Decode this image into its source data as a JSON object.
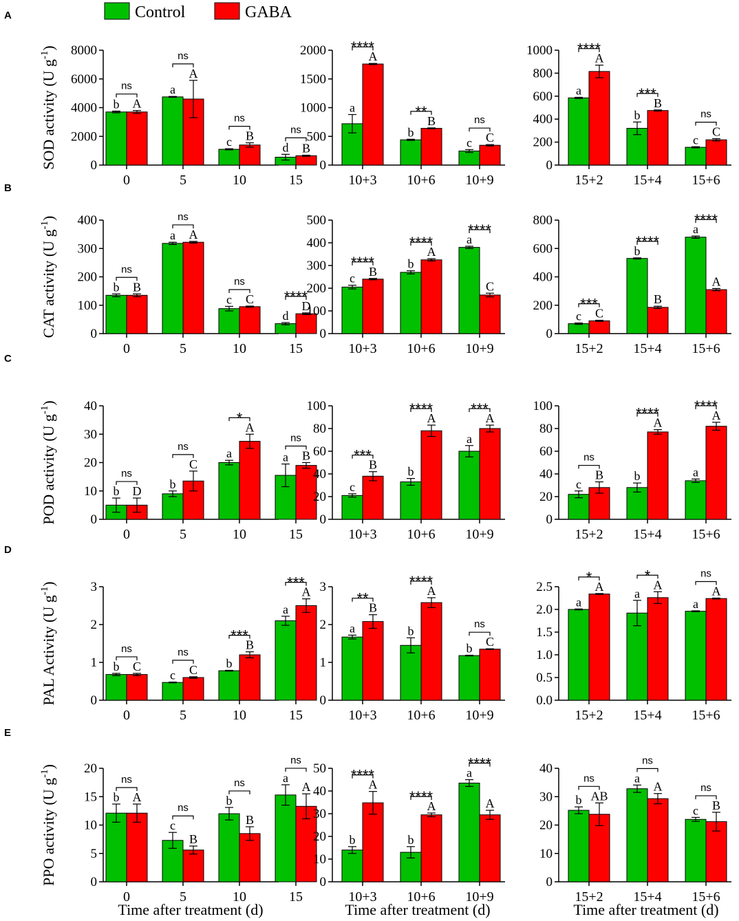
{
  "legend": {
    "control": "Control",
    "gaba": "GABA",
    "control_color": "#00c000",
    "gaba_color": "#ff0000"
  },
  "x_title": "Time after treatment (d)",
  "chart_data": [
    {
      "type": "bar",
      "label": "A",
      "ylabel": "SOD activity (U g-1)",
      "ylabel_base": "SOD activity (U g",
      "ylabel_exp": "-1",
      "ylabel_end": ")",
      "panels": [
        {
          "categories": [
            "0",
            "5",
            "10",
            "15"
          ],
          "ylim": [
            0,
            8000
          ],
          "yticks": [
            0,
            2000,
            4000,
            6000,
            8000
          ],
          "series": [
            {
              "name": "Control",
              "values": [
                3700,
                4750,
                1100,
                550
              ],
              "errors": [
                60,
                30,
                40,
                200
              ],
              "letters": [
                "b",
                "a",
                "c",
                "d"
              ]
            },
            {
              "name": "GABA",
              "values": [
                3700,
                4600,
                1400,
                650
              ],
              "errors": [
                100,
                1300,
                150,
                40
              ],
              "letters": [
                "A",
                "A",
                "B",
                "B"
              ]
            }
          ],
          "significance": [
            "ns",
            "ns",
            "ns",
            "ns"
          ]
        },
        {
          "categories": [
            "10+3",
            "10+6",
            "10+9"
          ],
          "ylim": [
            0,
            2000
          ],
          "yticks": [
            0,
            500,
            1000,
            1500,
            2000
          ],
          "series": [
            {
              "name": "Control",
              "values": [
                720,
                440,
                245
              ],
              "errors": [
                160,
                10,
                25
              ],
              "letters": [
                "a",
                "b",
                "c"
              ]
            },
            {
              "name": "GABA",
              "values": [
                1760,
                640,
                345
              ],
              "errors": [
                10,
                8,
                12
              ],
              "letters": [
                "A",
                "B",
                "C"
              ]
            }
          ],
          "significance": [
            "****",
            "**",
            "ns"
          ]
        },
        {
          "categories": [
            "15+2",
            "15+4",
            "15+6"
          ],
          "ylim": [
            0,
            1000
          ],
          "yticks": [
            0,
            200,
            400,
            600,
            800,
            1000
          ],
          "series": [
            {
              "name": "Control",
              "values": [
                585,
                320,
                155
              ],
              "errors": [
                5,
                55,
                5
              ],
              "letters": [
                "a",
                "b",
                "c"
              ]
            },
            {
              "name": "GABA",
              "values": [
                815,
                475,
                220
              ],
              "errors": [
                55,
                5,
                10
              ],
              "letters": [
                "A",
                "B",
                "C"
              ]
            }
          ],
          "significance": [
            "****",
            "***",
            "ns"
          ]
        }
      ]
    },
    {
      "type": "bar",
      "label": "B",
      "ylabel": "CAT activity (U g-1)",
      "ylabel_base": "CAT activity (U g",
      "ylabel_exp": "-1",
      "ylabel_end": ")",
      "panels": [
        {
          "categories": [
            "0",
            "5",
            "10",
            "15"
          ],
          "ylim": [
            0,
            400
          ],
          "yticks": [
            0,
            100,
            200,
            300,
            400
          ],
          "series": [
            {
              "name": "Control",
              "values": [
                135,
                318,
                88,
                35
              ],
              "errors": [
                5,
                4,
                8,
                4
              ],
              "letters": [
                "b",
                "a",
                "c",
                "d"
              ]
            },
            {
              "name": "GABA",
              "values": [
                135,
                322,
                95,
                70
              ],
              "errors": [
                5,
                3,
                2,
                3
              ],
              "letters": [
                "B",
                "A",
                "C",
                "D"
              ]
            }
          ],
          "significance": [
            "ns",
            "ns",
            "ns",
            "****"
          ]
        },
        {
          "categories": [
            "10+3",
            "10+6",
            "10+9"
          ],
          "ylim": [
            0,
            500
          ],
          "yticks": [
            0,
            100,
            200,
            300,
            400,
            500
          ],
          "series": [
            {
              "name": "Control",
              "values": [
                205,
                270,
                380
              ],
              "errors": [
                8,
                7,
                5
              ],
              "letters": [
                "c",
                "b",
                "a"
              ]
            },
            {
              "name": "GABA",
              "values": [
                240,
                325,
                170
              ],
              "errors": [
                3,
                5,
                8
              ],
              "letters": [
                "B",
                "A",
                "C"
              ]
            }
          ],
          "significance": [
            "****",
            "****",
            "****"
          ]
        },
        {
          "categories": [
            "15+2",
            "15+4",
            "15+6"
          ],
          "ylim": [
            0,
            800
          ],
          "yticks": [
            0,
            200,
            400,
            600,
            800
          ],
          "series": [
            {
              "name": "Control",
              "values": [
                70,
                530,
                680
              ],
              "errors": [
                5,
                4,
                8
              ],
              "letters": [
                "c",
                "b",
                "a"
              ]
            },
            {
              "name": "GABA",
              "values": [
                90,
                185,
                310
              ],
              "errors": [
                4,
                8,
                8
              ],
              "letters": [
                "C",
                "B",
                "A"
              ]
            }
          ],
          "significance": [
            "***",
            "****",
            "****"
          ]
        }
      ]
    },
    {
      "type": "bar",
      "label": "C",
      "ylabel": "POD activity (U g-1)",
      "ylabel_base": "POD activity (U g",
      "ylabel_exp": "-1",
      "ylabel_end": ")",
      "panels": [
        {
          "categories": [
            "0",
            "5",
            "10",
            "15"
          ],
          "ylim": [
            0,
            40
          ],
          "yticks": [
            0,
            10,
            20,
            30,
            40
          ],
          "series": [
            {
              "name": "Control",
              "values": [
                5,
                9,
                20,
                15.5
              ],
              "errors": [
                2.5,
                1,
                0.8,
                4
              ],
              "letters": [
                "b",
                "b",
                "a",
                "a"
              ]
            },
            {
              "name": "GABA",
              "values": [
                5,
                13.5,
                27.5,
                19
              ],
              "errors": [
                2.5,
                3.5,
                2.5,
                1
              ],
              "letters": [
                "D",
                "C",
                "A",
                "B"
              ]
            }
          ],
          "significance": [
            "ns",
            "ns",
            "*",
            "ns"
          ]
        },
        {
          "categories": [
            "10+3",
            "10+6",
            "10+9"
          ],
          "ylim": [
            0,
            100
          ],
          "yticks": [
            0,
            20,
            40,
            60,
            80,
            100
          ],
          "series": [
            {
              "name": "Control",
              "values": [
                21,
                33,
                60
              ],
              "errors": [
                1.5,
                3,
                5
              ],
              "letters": [
                "c",
                "b",
                "a"
              ]
            },
            {
              "name": "GABA",
              "values": [
                38,
                78,
                80
              ],
              "errors": [
                4,
                5,
                3
              ],
              "letters": [
                "B",
                "A",
                "A"
              ]
            }
          ],
          "significance": [
            "***",
            "****",
            "***"
          ]
        },
        {
          "categories": [
            "15+2",
            "15+4",
            "15+6"
          ],
          "ylim": [
            0,
            100
          ],
          "yticks": [
            0,
            20,
            40,
            60,
            80,
            100
          ],
          "series": [
            {
              "name": "Control",
              "values": [
                22,
                28,
                34
              ],
              "errors": [
                3,
                4,
                1.5
              ],
              "letters": [
                "c",
                "b",
                "a"
              ]
            },
            {
              "name": "GABA",
              "values": [
                28,
                77,
                82
              ],
              "errors": [
                5,
                2,
                3.5
              ],
              "letters": [
                "B",
                "A",
                "A"
              ]
            }
          ],
          "significance": [
            "ns",
            "****",
            "****"
          ]
        }
      ]
    },
    {
      "type": "bar",
      "label": "D",
      "ylabel": "PAL Activity (U g-1)",
      "ylabel_base": "PAL Activity (U g",
      "ylabel_exp": "-1",
      "ylabel_end": ")",
      "panels": [
        {
          "categories": [
            "0",
            "5",
            "10",
            "15"
          ],
          "ylim": [
            0,
            3
          ],
          "yticks": [
            0,
            1,
            2,
            3
          ],
          "series": [
            {
              "name": "Control",
              "values": [
                0.68,
                0.47,
                0.78,
                2.1
              ],
              "errors": [
                0.03,
                0.01,
                0.01,
                0.12
              ],
              "letters": [
                "b",
                "c",
                "b",
                "a"
              ]
            },
            {
              "name": "GABA",
              "values": [
                0.68,
                0.6,
                1.2,
                2.5
              ],
              "errors": [
                0.03,
                0.02,
                0.08,
                0.18
              ],
              "letters": [
                "C",
                "C",
                "B",
                "A"
              ]
            }
          ],
          "significance": [
            "ns",
            "ns",
            "***",
            "***"
          ]
        },
        {
          "categories": [
            "10+3",
            "10+6",
            "10+9"
          ],
          "ylim": [
            0,
            3
          ],
          "yticks": [
            0,
            1,
            2,
            3
          ],
          "series": [
            {
              "name": "Control",
              "values": [
                1.67,
                1.45,
                1.18
              ],
              "errors": [
                0.05,
                0.2,
                0.01
              ],
              "letters": [
                "a",
                "b",
                "b"
              ]
            },
            {
              "name": "GABA",
              "values": [
                2.08,
                2.58,
                1.35
              ],
              "errors": [
                0.18,
                0.13,
                0.01
              ],
              "letters": [
                "B",
                "A",
                "C"
              ]
            }
          ],
          "significance": [
            "**",
            "****",
            "ns"
          ]
        },
        {
          "categories": [
            "15+2",
            "15+4",
            "15+6"
          ],
          "ylim": [
            0,
            2.5
          ],
          "yticks": [
            "0.0",
            "0.5",
            "1.0",
            "1.5",
            "2.0",
            "2.5"
          ],
          "series": [
            {
              "name": "Control",
              "values": [
                2.0,
                1.92,
                1.96
              ],
              "errors": [
                0.01,
                0.28,
                0.01
              ],
              "letters": [
                "a",
                "a",
                "a"
              ]
            },
            {
              "name": "GABA",
              "values": [
                2.34,
                2.26,
                2.24
              ],
              "errors": [
                0.01,
                0.13,
                0.01
              ],
              "letters": [
                "A",
                "A",
                "A"
              ]
            }
          ],
          "significance": [
            "*",
            "*",
            "ns"
          ]
        }
      ]
    },
    {
      "type": "bar",
      "label": "E",
      "ylabel": "PPO activity (U g-1)",
      "ylabel_base": "PPO activity (U g",
      "ylabel_exp": "-1",
      "ylabel_end": ")",
      "panels": [
        {
          "categories": [
            "0",
            "5",
            "10",
            "15"
          ],
          "ylim": [
            0,
            20
          ],
          "yticks": [
            0,
            5,
            10,
            15,
            20
          ],
          "series": [
            {
              "name": "Control",
              "values": [
                12.1,
                7.3,
                12.0,
                15.3
              ],
              "errors": [
                1.6,
                1.4,
                1.1,
                1.8
              ],
              "letters": [
                "b",
                "c",
                "b",
                "a"
              ]
            },
            {
              "name": "GABA",
              "values": [
                12.1,
                5.6,
                8.5,
                13.3
              ],
              "errors": [
                1.6,
                0.7,
                1.2,
                2.2
              ],
              "letters": [
                "A",
                "B",
                "B",
                "A"
              ]
            }
          ],
          "significance": [
            "ns",
            "ns",
            "ns",
            "ns"
          ]
        },
        {
          "categories": [
            "10+3",
            "10+6",
            "10+9"
          ],
          "ylim": [
            0,
            50
          ],
          "yticks": [
            0,
            10,
            20,
            30,
            40,
            50
          ],
          "series": [
            {
              "name": "Control",
              "values": [
                14,
                13,
                43.5
              ],
              "errors": [
                1.5,
                2.5,
                1.5
              ],
              "letters": [
                "b",
                "b",
                "a"
              ]
            },
            {
              "name": "GABA",
              "values": [
                34.8,
                29.5,
                29.5
              ],
              "errors": [
                5,
                0.8,
                2
              ],
              "letters": [
                "A",
                "A",
                "A"
              ]
            }
          ],
          "significance": [
            "****",
            "****",
            "****"
          ]
        },
        {
          "categories": [
            "15+2",
            "15+4",
            "15+6"
          ],
          "ylim": [
            0,
            40
          ],
          "yticks": [
            0,
            10,
            20,
            30,
            40
          ],
          "series": [
            {
              "name": "Control",
              "values": [
                25.2,
                32.8,
                22
              ],
              "errors": [
                1.2,
                1.3,
                0.7
              ],
              "letters": [
                "b",
                "a",
                "c"
              ]
            },
            {
              "name": "GABA",
              "values": [
                23.8,
                29.3,
                21.2
              ],
              "errors": [
                4,
                1.8,
                3.3
              ],
              "letters": [
                "AB",
                "A",
                "B"
              ]
            }
          ],
          "significance": [
            "ns",
            "ns",
            "ns"
          ]
        }
      ]
    }
  ]
}
